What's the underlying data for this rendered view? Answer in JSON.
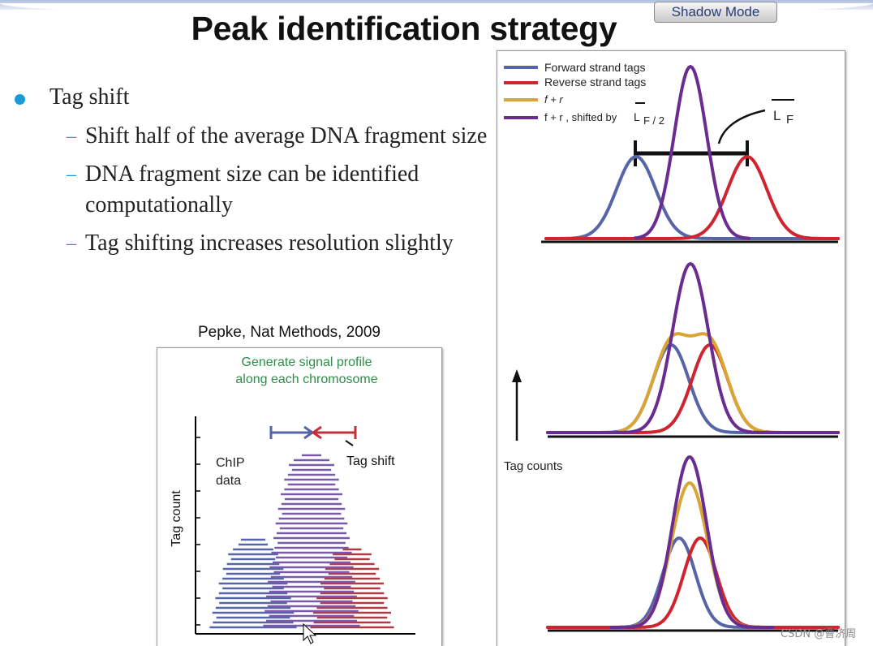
{
  "slide": {
    "title": "Peak identification strategy",
    "shadow_mode_label": "Shadow Mode",
    "bullets": [
      {
        "text": "Tag shift",
        "sub": [
          "Shift half of the average DNA fragment size",
          "DNA fragment size can be identified computationally",
          "Tag shifting increases resolution slightly"
        ]
      }
    ],
    "citation": "Pepke, Nat Methods, 2009"
  },
  "left_figure": {
    "title_line1": "Generate signal profile",
    "title_line2": "along each chromosome",
    "chip_label_1": "ChIP",
    "chip_label_2": "data",
    "tag_shift_label": "Tag shift",
    "ylabel": "Tag count"
  },
  "right_figure": {
    "legend": {
      "forward": "Forward strand tags",
      "reverse": "Reverse strand tags",
      "fr": "f + r",
      "fr_shift": "f + r , shifted by"
    },
    "shift_symbol": "L",
    "shift_subscript": "F / 2",
    "lf_symbol": "L",
    "lf_subscript": "F",
    "ylabel": "Tag counts"
  },
  "colors": {
    "forward": "#5565a8",
    "reverse": "#d0242f",
    "sum": "#d9a634",
    "shifted": "#6a2c90",
    "title_green": "#2f8c4a",
    "bullet": "#1a9ad6"
  },
  "watermark": "CSDN @曹济周"
}
